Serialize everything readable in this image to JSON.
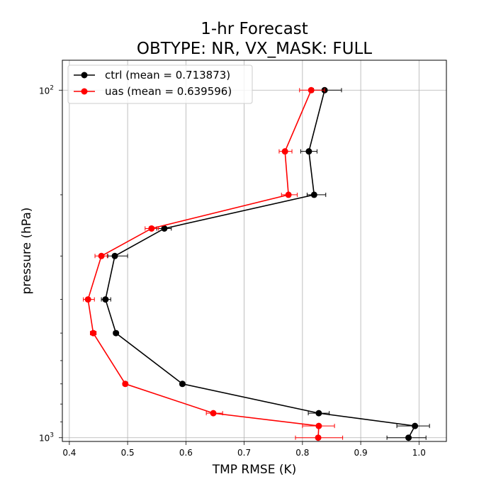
{
  "chart_data": {
    "type": "line",
    "title": "1-hr Forecast",
    "subtitle": "OBTYPE: NR,  VX_MASK: FULL",
    "xlabel": "TMP RMSE (K)",
    "ylabel": "pressure (hPa)",
    "xlim": [
      0.388,
      1.047
    ],
    "ylim": [
      1025,
      82
    ],
    "y_scale": "log",
    "grid": true,
    "legend_position": "top-left",
    "x_ticks": [
      {
        "value": 0.4,
        "label": "0.4"
      },
      {
        "value": 0.5,
        "label": "0.5"
      },
      {
        "value": 0.6,
        "label": "0.6"
      },
      {
        "value": 0.7,
        "label": "0.7"
      },
      {
        "value": 0.8,
        "label": "0.8"
      },
      {
        "value": 0.9,
        "label": "0.9"
      },
      {
        "value": 1.0,
        "label": "1.0"
      }
    ],
    "y_major_ticks": [
      {
        "value": 100,
        "base": "10",
        "exp": "2"
      },
      {
        "value": 1000,
        "base": "10",
        "exp": "3"
      }
    ],
    "y_minor_ticks": [
      200,
      300,
      400,
      500,
      600,
      700,
      800,
      900
    ],
    "series": [
      {
        "name": "ctrl (mean = 0.713873)",
        "color": "#000000",
        "points": [
          {
            "p": 100,
            "x": 0.838,
            "lo": 0.819,
            "hi": 0.867
          },
          {
            "p": 150,
            "x": 0.811,
            "lo": 0.797,
            "hi": 0.825
          },
          {
            "p": 200,
            "x": 0.82,
            "lo": 0.808,
            "hi": 0.84
          },
          {
            "p": 250,
            "x": 0.563,
            "lo": 0.55,
            "hi": 0.575
          },
          {
            "p": 300,
            "x": 0.478,
            "lo": 0.466,
            "hi": 0.5
          },
          {
            "p": 400,
            "x": 0.462,
            "lo": 0.455,
            "hi": 0.471
          },
          {
            "p": 500,
            "x": 0.48,
            "lo": 0.476,
            "hi": 0.483
          },
          {
            "p": 700,
            "x": 0.594,
            "lo": 0.59,
            "hi": 0.598
          },
          {
            "p": 850,
            "x": 0.828,
            "lo": 0.81,
            "hi": 0.846
          },
          {
            "p": 925,
            "x": 0.993,
            "lo": 0.962,
            "hi": 1.018
          },
          {
            "p": 1000,
            "x": 0.982,
            "lo": 0.945,
            "hi": 1.012
          }
        ]
      },
      {
        "name": "uas (mean = 0.639596)",
        "color": "#ff0000",
        "points": [
          {
            "p": 100,
            "x": 0.815,
            "lo": 0.795,
            "hi": 0.838
          },
          {
            "p": 150,
            "x": 0.77,
            "lo": 0.76,
            "hi": 0.782
          },
          {
            "p": 200,
            "x": 0.776,
            "lo": 0.764,
            "hi": 0.791
          },
          {
            "p": 250,
            "x": 0.541,
            "lo": 0.53,
            "hi": 0.553
          },
          {
            "p": 300,
            "x": 0.455,
            "lo": 0.444,
            "hi": 0.465
          },
          {
            "p": 400,
            "x": 0.432,
            "lo": 0.424,
            "hi": 0.443
          },
          {
            "p": 500,
            "x": 0.441,
            "lo": 0.436,
            "hi": 0.446
          },
          {
            "p": 700,
            "x": 0.496,
            "lo": 0.492,
            "hi": 0.5
          },
          {
            "p": 850,
            "x": 0.647,
            "lo": 0.635,
            "hi": 0.663
          },
          {
            "p": 925,
            "x": 0.828,
            "lo": 0.8,
            "hi": 0.855
          },
          {
            "p": 1000,
            "x": 0.827,
            "lo": 0.788,
            "hi": 0.869
          }
        ]
      }
    ]
  }
}
